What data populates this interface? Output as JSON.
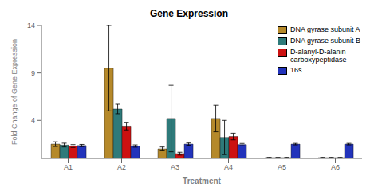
{
  "chart_data": {
    "type": "bar",
    "title": "Gene Expression",
    "x_label": "Treatment",
    "y_label": "Fold  Change of Gene  Expression",
    "categories": [
      "A1",
      "A2",
      "A3",
      "A4",
      "A5",
      "A6"
    ],
    "series": [
      {
        "name": "DNA gyrase subunit A",
        "color": "#b5892a",
        "values": [
          1.5,
          9.5,
          1.0,
          4.2,
          0.08,
          0.08
        ],
        "errors": [
          0.25,
          4.5,
          0.2,
          1.4,
          0.03,
          0.03
        ]
      },
      {
        "name": "DNA gyrase subunit B",
        "color": "#2e7a7a",
        "values": [
          1.4,
          5.2,
          4.2,
          2.2,
          0.08,
          0.08
        ],
        "errors": [
          0.2,
          0.5,
          3.5,
          1.8,
          0.03,
          0.03
        ]
      },
      {
        "name": "D-alanyl-D-alanin\ncarboxypeptidase",
        "color": "#cc1111",
        "values": [
          1.3,
          3.4,
          0.5,
          2.3,
          0.08,
          0.08
        ],
        "errors": [
          0.15,
          0.4,
          0.15,
          0.35,
          0.03,
          0.03
        ]
      },
      {
        "name": "16s",
        "color": "#2233bb",
        "values": [
          1.35,
          1.3,
          1.5,
          1.45,
          1.5,
          1.5
        ],
        "errors": [
          0.12,
          0.12,
          0.12,
          0.12,
          0.08,
          0.08
        ]
      }
    ],
    "ylim": [
      0,
      14
    ],
    "yticks": [
      4,
      9,
      14
    ],
    "grid": false,
    "legend": "upper right"
  }
}
